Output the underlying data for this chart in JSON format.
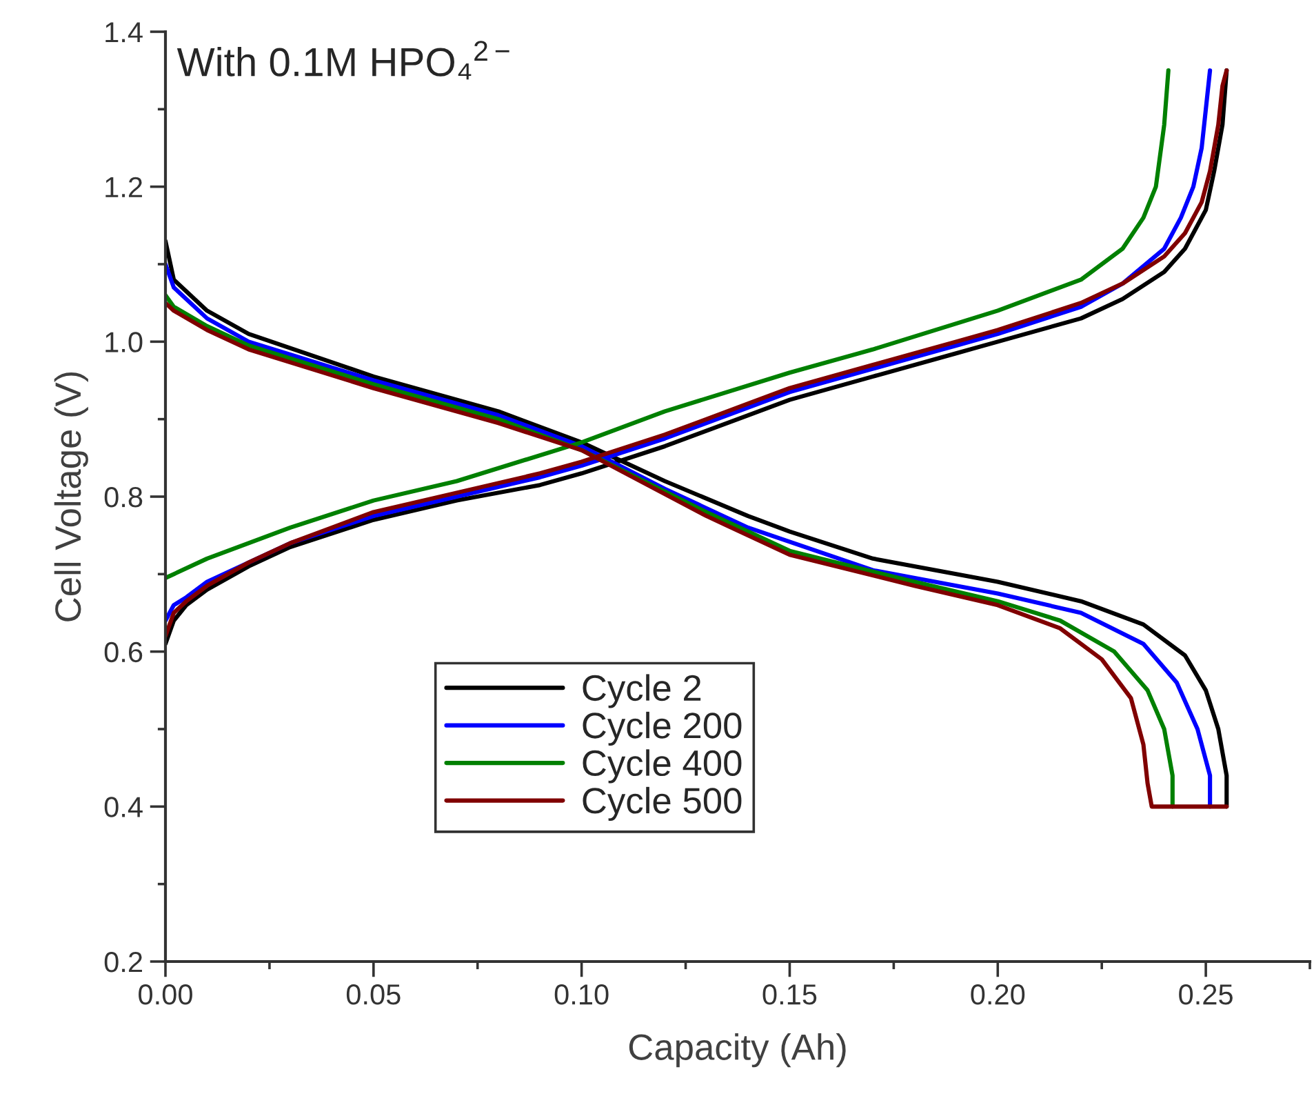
{
  "chart_data": {
    "type": "line",
    "xlabel": "Capacity (Ah)",
    "ylabel": "Cell Voltage (V)",
    "annotations": [
      "With 0.1M HPO₄$^{2−}$"
    ],
    "xlim": [
      0,
      0.275
    ],
    "xticks": [
      {
        "value": 0,
        "label": "0.00"
      },
      0.05,
      {
        "value": 0.1,
        "label": "0.10"
      },
      0.15,
      {
        "value": 0.2,
        "label": "0.20"
      },
      0.25
    ],
    "ylim": [
      0.2,
      1.4
    ],
    "yticks": [
      0.2,
      0.4,
      0.6,
      0.8,
      {
        "value": 1,
        "label": "1.0"
      },
      1.2,
      1.4
    ],
    "grid": false,
    "legend": "bottom",
    "line_style": "solid",
    "marker": "none",
    "series": [
      {
        "name": "Cycle 2",
        "color": "#000000",
        "x": [
          0,
          0.002,
          0.005,
          0.01,
          0.02,
          0.03,
          0.05,
          0.07,
          0.09,
          0.1,
          0.12,
          0.14,
          0.15,
          0.17,
          0.19,
          0.2,
          0.22,
          0.23,
          0.24,
          0.245,
          0.25,
          0.252,
          0.254,
          0.255,
          null,
          0,
          0.002,
          0.01,
          0.02,
          0.05,
          0.08,
          0.1,
          0.12,
          0.14,
          0.15,
          0.17,
          0.19,
          0.2,
          0.22,
          0.235,
          0.245,
          0.25,
          0.253,
          0.255,
          0.255
        ],
        "values": [
          0.61,
          0.64,
          0.66,
          0.68,
          0.71,
          0.735,
          0.77,
          0.795,
          0.815,
          0.83,
          0.865,
          0.905,
          0.925,
          0.955,
          0.985,
          1.0,
          1.03,
          1.055,
          1.09,
          1.12,
          1.17,
          1.22,
          1.28,
          1.35,
          null,
          1.13,
          1.08,
          1.04,
          1.01,
          0.955,
          0.91,
          0.87,
          0.82,
          0.775,
          0.755,
          0.72,
          0.7,
          0.69,
          0.665,
          0.635,
          0.595,
          0.55,
          0.5,
          0.44,
          0.4
        ]
      },
      {
        "name": "Cycle 200",
        "color": "#0000ff",
        "x": [
          0,
          0.002,
          0.005,
          0.01,
          0.02,
          0.03,
          0.05,
          0.07,
          0.09,
          0.1,
          0.12,
          0.14,
          0.15,
          0.17,
          0.19,
          0.2,
          0.22,
          0.23,
          0.24,
          0.244,
          0.247,
          0.249,
          0.25,
          0.251,
          null,
          0,
          0.002,
          0.01,
          0.02,
          0.05,
          0.08,
          0.1,
          0.12,
          0.14,
          0.17,
          0.2,
          0.22,
          0.235,
          0.243,
          0.248,
          0.251,
          0.251
        ],
        "values": [
          0.64,
          0.66,
          0.67,
          0.69,
          0.715,
          0.74,
          0.775,
          0.8,
          0.825,
          0.84,
          0.875,
          0.915,
          0.935,
          0.965,
          0.995,
          1.01,
          1.045,
          1.075,
          1.12,
          1.16,
          1.2,
          1.25,
          1.3,
          1.35,
          null,
          1.1,
          1.07,
          1.03,
          1.0,
          0.95,
          0.905,
          0.865,
          0.81,
          0.76,
          0.705,
          0.675,
          0.65,
          0.61,
          0.56,
          0.5,
          0.44,
          0.4
        ]
      },
      {
        "name": "Cycle 400",
        "color": "#008000",
        "x": [
          0,
          0.01,
          0.03,
          0.05,
          0.07,
          0.1,
          0.12,
          0.15,
          0.17,
          0.2,
          0.22,
          0.23,
          0.235,
          0.238,
          0.24,
          0.241,
          null,
          0,
          0.002,
          0.01,
          0.02,
          0.05,
          0.08,
          0.1,
          0.13,
          0.15,
          0.18,
          0.2,
          0.215,
          0.228,
          0.236,
          0.24,
          0.242,
          0.242
        ],
        "values": [
          0.695,
          0.72,
          0.76,
          0.795,
          0.82,
          0.87,
          0.91,
          0.96,
          0.99,
          1.04,
          1.08,
          1.12,
          1.16,
          1.2,
          1.28,
          1.35,
          null,
          1.06,
          1.045,
          1.02,
          0.995,
          0.945,
          0.9,
          0.86,
          0.78,
          0.73,
          0.69,
          0.665,
          0.64,
          0.6,
          0.55,
          0.5,
          0.44,
          0.4
        ]
      },
      {
        "name": "Cycle 500",
        "color": "#800000",
        "x": [
          0,
          0.002,
          0.005,
          0.01,
          0.02,
          0.03,
          0.05,
          0.07,
          0.09,
          0.1,
          0.12,
          0.14,
          0.15,
          0.17,
          0.19,
          0.2,
          0.22,
          0.23,
          0.24,
          0.245,
          0.249,
          0.251,
          0.253,
          0.254,
          0.255,
          null,
          0,
          0.002,
          0.01,
          0.02,
          0.05,
          0.08,
          0.1,
          0.13,
          0.15,
          0.18,
          0.2,
          0.215,
          0.225,
          0.232,
          0.235,
          0.236,
          0.237,
          0.255
        ],
        "values": [
          0.62,
          0.65,
          0.665,
          0.685,
          0.715,
          0.74,
          0.78,
          0.805,
          0.83,
          0.845,
          0.88,
          0.92,
          0.94,
          0.97,
          1.0,
          1.015,
          1.05,
          1.075,
          1.11,
          1.14,
          1.18,
          1.22,
          1.28,
          1.33,
          1.35,
          null,
          1.05,
          1.04,
          1.015,
          0.99,
          0.94,
          0.895,
          0.86,
          0.775,
          0.725,
          0.685,
          0.66,
          0.63,
          0.59,
          0.54,
          0.48,
          0.43,
          0.4,
          0.4
        ]
      }
    ]
  }
}
